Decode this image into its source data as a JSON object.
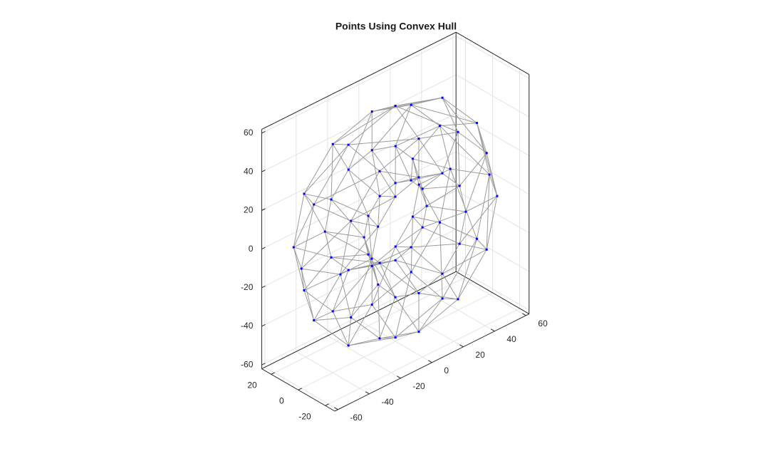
{
  "chart_data": {
    "type": "scatter3",
    "title": "Points Using Convex Hull",
    "color": "#0000ff",
    "edge_color": "#9b9b9b",
    "grid": true,
    "x": [
      0,
      17.3,
      17.3,
      0,
      -17.3,
      -17.3,
      0,
      17.3,
      17.3,
      0,
      -17.3,
      -17.3,
      0,
      17.3,
      17.3,
      0,
      -17.3,
      -17.3,
      0,
      17.3,
      17.3,
      0,
      -17.3,
      -17.3,
      0,
      17.3,
      17.3,
      0,
      -17.3,
      -17.3,
      0,
      17.3,
      17.3,
      0,
      -17.3,
      -17.3,
      0,
      17.3,
      17.3,
      0,
      -17.3,
      -17.3,
      0,
      17.3,
      17.3,
      0,
      -17.3,
      -17.3,
      0,
      17.3,
      17.3,
      0,
      -17.3,
      -17.3,
      0,
      17.3,
      17.3,
      0,
      -17.3,
      -17.3,
      0,
      17.3,
      17.3,
      0,
      -17.3,
      -17.3,
      0,
      17.3,
      17.3,
      0,
      -17.3,
      -17.3
    ],
    "y": [
      60,
      50,
      30,
      20,
      30,
      50,
      52,
      43.3,
      26,
      17.3,
      26,
      43.3,
      30,
      25,
      15,
      10,
      15,
      25,
      0,
      0,
      0,
      0,
      0,
      0,
      -30,
      -25,
      -15,
      -10,
      -15,
      -25,
      -52,
      -43.3,
      -26,
      -17.3,
      -26,
      -43.3,
      -60,
      -50,
      -30,
      -20,
      -30,
      -50,
      -52,
      -43.3,
      -26,
      -17.3,
      -26,
      -43.3,
      -30,
      -25,
      -15,
      -10,
      -15,
      -25,
      0,
      0,
      0,
      0,
      0,
      0,
      30,
      25,
      15,
      10,
      15,
      25,
      52,
      43.3,
      26,
      17.3,
      26,
      43.3
    ],
    "z": [
      0,
      0,
      0,
      0,
      0,
      0,
      30,
      25,
      15,
      10,
      15,
      25,
      52,
      43.3,
      26,
      17.3,
      26,
      43.3,
      60,
      50,
      30,
      20,
      30,
      50,
      52,
      43.3,
      26,
      17.3,
      26,
      43.3,
      30,
      25,
      15,
      10,
      15,
      25,
      0,
      0,
      0,
      0,
      0,
      0,
      -30,
      -25,
      -15,
      -10,
      -15,
      -25,
      -52,
      -43.3,
      -26,
      -17.3,
      -26,
      -43.3,
      -60,
      -50,
      -30,
      -20,
      -30,
      -50,
      -52,
      -43.3,
      -26,
      -17.3,
      -26,
      -43.3,
      -30,
      -25,
      -15,
      -10,
      -15,
      -25
    ],
    "xlim": [
      -27,
      27
    ],
    "ylim": [
      -62,
      62
    ],
    "zlim": [
      -62,
      62
    ],
    "xticks": [
      -20,
      0,
      20
    ],
    "yticks": [
      -60,
      -40,
      -20,
      0,
      20,
      40,
      60
    ],
    "zticks": [
      -60,
      -40,
      -20,
      0,
      20,
      40,
      60
    ]
  }
}
